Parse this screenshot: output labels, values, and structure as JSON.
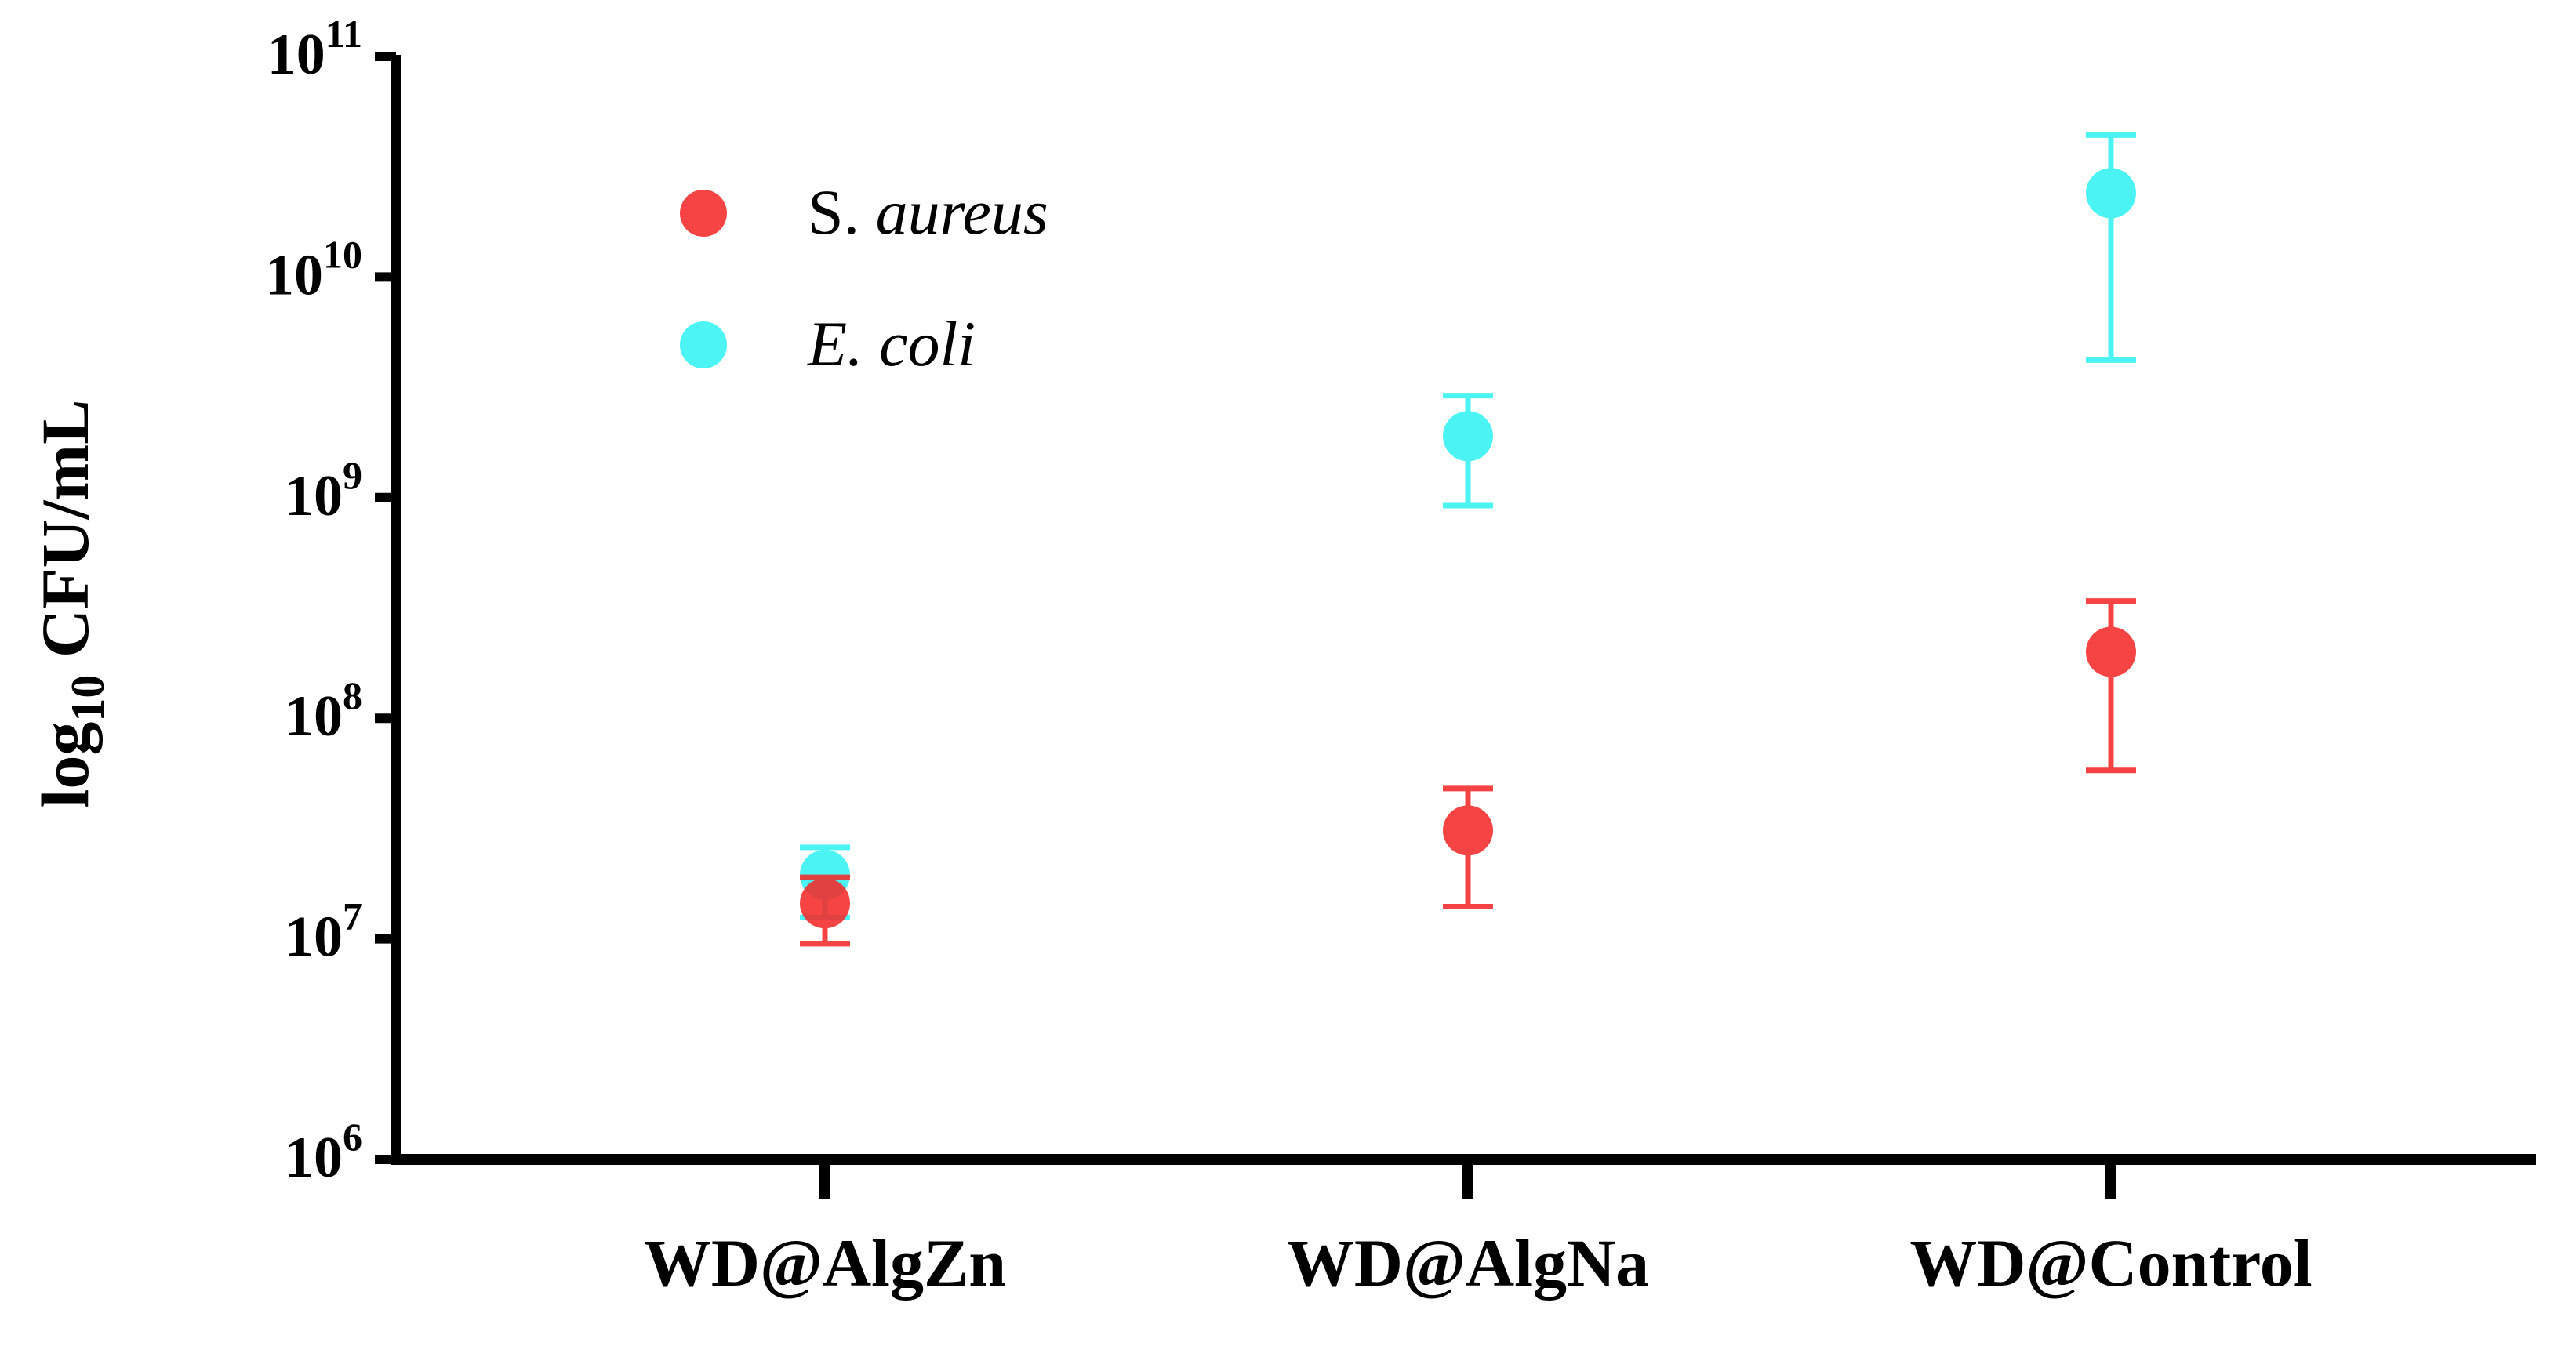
{
  "chart_data": {
    "type": "scatter",
    "title": "",
    "xlabel": "",
    "ylabel": {
      "prefix": "log",
      "subscript": "10",
      "suffix": " CFU/mL"
    },
    "y_scale": "log",
    "ylim": [
      1000000,
      100000000000
    ],
    "y_ticks": [
      {
        "value": 1000000,
        "base": "10",
        "exp": "6"
      },
      {
        "value": 10000000,
        "base": "10",
        "exp": "7"
      },
      {
        "value": 100000000,
        "base": "10",
        "exp": "8"
      },
      {
        "value": 1000000000,
        "base": "10",
        "exp": "9"
      },
      {
        "value": 10000000000,
        "base": "10",
        "exp": "10"
      },
      {
        "value": 100000000000,
        "base": "10",
        "exp": "11"
      }
    ],
    "categories": [
      "WD@AlgZn",
      "WD@AlgNa",
      "WD@Control"
    ],
    "legend_position": "top-left",
    "series": [
      {
        "name": "S. aureus",
        "name_parts": [
          "S. ",
          "aureus"
        ],
        "color": "#f52a2a",
        "values": [
          14500000,
          31000000,
          200000000
        ],
        "err_low": [
          9500000,
          14000000,
          58000000
        ],
        "err_high": [
          19000000,
          48000000,
          340000000
        ]
      },
      {
        "name": "E. coli",
        "name_parts": [
          "",
          "E. coli"
        ],
        "color": "#33f2f2",
        "values": [
          19500000,
          1900000000,
          24000000000
        ],
        "err_low": [
          12500000,
          920000000,
          4200000000
        ],
        "err_high": [
          26000000,
          2900000000,
          44000000000
        ]
      }
    ],
    "grid": false
  }
}
